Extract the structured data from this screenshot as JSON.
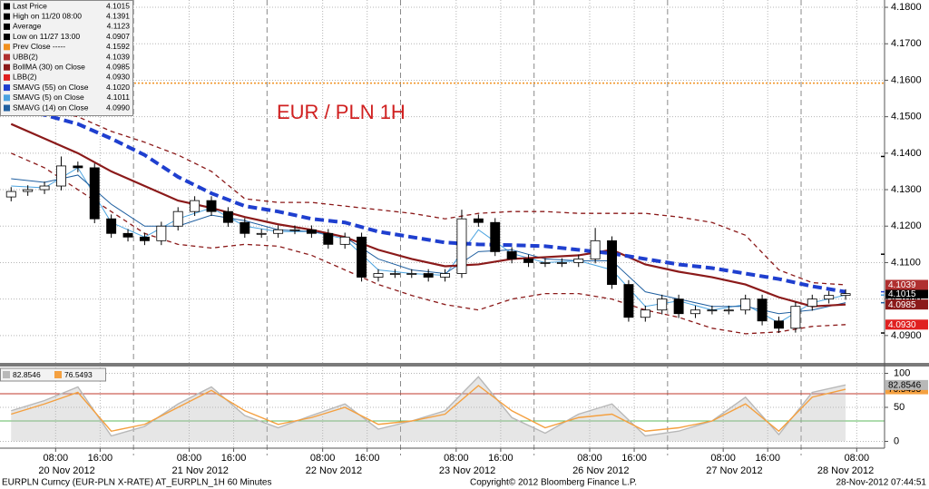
{
  "chart_data": {
    "type": "candlestick",
    "title": "EUR / PLN 1H",
    "up_color": "#ffffff",
    "down_color": "#000000",
    "x": [
      0,
      3,
      6,
      9,
      12,
      15,
      18,
      21,
      24,
      27,
      30,
      33,
      36,
      39,
      42,
      45,
      48,
      51,
      54,
      57,
      60,
      63,
      66,
      69,
      72,
      75,
      78,
      81,
      84,
      87,
      90,
      93,
      96,
      99,
      102,
      105,
      108,
      111,
      114,
      117,
      120,
      123,
      126,
      129,
      132,
      135,
      138,
      141,
      144,
      147,
      150
    ],
    "open": [
      4.128,
      4.1295,
      4.13,
      4.131,
      4.1365,
      4.136,
      4.122,
      4.118,
      4.117,
      4.116,
      4.12,
      4.124,
      4.127,
      4.124,
      4.121,
      4.118,
      4.118,
      4.119,
      4.119,
      4.118,
      4.115,
      4.117,
      4.106,
      4.107,
      4.107,
      4.107,
      4.106,
      4.107,
      4.122,
      4.121,
      4.113,
      4.111,
      4.11,
      4.11,
      4.11,
      4.111,
      4.116,
      4.104,
      4.095,
      4.097,
      4.1,
      4.096,
      4.097,
      4.097,
      4.097,
      4.1,
      4.094,
      4.092,
      4.098,
      4.1,
      4.101
    ],
    "high": [
      4.1307,
      4.1312,
      4.1322,
      4.1391,
      4.1377,
      4.1372,
      4.1232,
      4.1192,
      4.1182,
      4.1212,
      4.1252,
      4.1282,
      4.1282,
      4.1252,
      4.1222,
      4.1192,
      4.1202,
      4.1202,
      4.1202,
      4.1192,
      4.1182,
      4.1182,
      4.1082,
      4.1082,
      4.1082,
      4.1082,
      4.1082,
      4.1245,
      4.1232,
      4.1222,
      4.1142,
      4.1122,
      4.1112,
      4.1112,
      4.1122,
      4.1195,
      4.1172,
      4.1052,
      4.0982,
      4.1012,
      4.1012,
      4.0982,
      4.0982,
      4.0982,
      4.1012,
      4.1012,
      4.0952,
      4.0992,
      4.1012,
      4.1022,
      4.1027
    ],
    "low": [
      4.1268,
      4.1283,
      4.1288,
      4.1298,
      4.1348,
      4.1208,
      4.1168,
      4.1158,
      4.1148,
      4.1148,
      4.1188,
      4.1228,
      4.1228,
      4.1198,
      4.1168,
      4.1168,
      4.1168,
      4.1178,
      4.1168,
      4.1138,
      4.1138,
      4.1048,
      4.1048,
      4.1058,
      4.1058,
      4.1048,
      4.1048,
      4.1058,
      4.1198,
      4.1118,
      4.1098,
      4.1088,
      4.1088,
      4.1088,
      4.1088,
      4.1098,
      4.1028,
      4.0938,
      4.0938,
      4.0958,
      4.0948,
      4.0948,
      4.0958,
      4.0958,
      4.0958,
      4.0928,
      4.0907,
      4.0908,
      4.0968,
      4.0988,
      4.0998
    ],
    "close": [
      4.1295,
      4.13,
      4.131,
      4.1365,
      4.136,
      4.122,
      4.118,
      4.117,
      4.116,
      4.12,
      4.124,
      4.127,
      4.124,
      4.121,
      4.118,
      4.118,
      4.119,
      4.119,
      4.118,
      4.115,
      4.117,
      4.106,
      4.107,
      4.107,
      4.107,
      4.106,
      4.107,
      4.122,
      4.121,
      4.113,
      4.111,
      4.11,
      4.11,
      4.11,
      4.111,
      4.116,
      4.104,
      4.095,
      4.097,
      4.1,
      4.096,
      4.097,
      4.097,
      4.097,
      4.1,
      4.094,
      4.092,
      4.098,
      4.1,
      4.101,
      4.1015
    ],
    "overlays": {
      "x": [
        0,
        6,
        12,
        18,
        24,
        30,
        36,
        42,
        48,
        54,
        60,
        66,
        72,
        78,
        84,
        90,
        96,
        102,
        108,
        114,
        120,
        126,
        132,
        138,
        144,
        150
      ],
      "series": [
        {
          "color": "#8b1a1a",
          "dashed": true,
          "width": 1.3,
          "values": [
            4.156,
            4.152,
            4.15,
            4.146,
            4.143,
            4.1395,
            4.135,
            4.1275,
            4.1265,
            4.1265,
            4.1255,
            4.1245,
            4.1235,
            4.122,
            4.1235,
            4.124,
            4.124,
            4.1235,
            4.1235,
            4.1235,
            4.1225,
            4.121,
            4.1175,
            4.108,
            4.1045,
            4.1039
          ]
        },
        {
          "color": "#8b1a1a",
          "dashed": true,
          "width": 1.3,
          "values": [
            4.14,
            4.136,
            4.13,
            4.124,
            4.118,
            4.115,
            4.114,
            4.115,
            4.1145,
            4.112,
            4.108,
            4.104,
            4.101,
            4.0985,
            4.097,
            4.1,
            4.1015,
            4.1015,
            4.1,
            4.097,
            4.095,
            4.092,
            4.0905,
            4.091,
            4.0925,
            4.093
          ]
        },
        {
          "color": "#4aa3e0",
          "dashed": false,
          "width": 1,
          "values": [
            4.131,
            4.1305,
            4.136,
            4.121,
            4.117,
            4.122,
            4.125,
            4.12,
            4.1185,
            4.1185,
            4.1165,
            4.108,
            4.107,
            4.1065,
            4.119,
            4.1125,
            4.11,
            4.1105,
            4.108,
            4.098,
            4.0995,
            4.097,
            4.0985,
            4.0935,
            4.099,
            4.1011
          ]
        },
        {
          "color": "#1f5fa0",
          "dashed": false,
          "width": 1,
          "values": [
            4.133,
            4.132,
            4.134,
            4.126,
            4.12,
            4.12,
            4.123,
            4.1215,
            4.119,
            4.1185,
            4.117,
            4.111,
            4.108,
            4.107,
            4.113,
            4.1135,
            4.111,
            4.1105,
            4.1105,
            4.102,
            4.1,
            4.098,
            4.098,
            4.096,
            4.097,
            4.099
          ]
        },
        {
          "color": "#8b1a1a",
          "dashed": false,
          "width": 2.2,
          "values": [
            4.148,
            4.144,
            4.14,
            4.135,
            4.131,
            4.127,
            4.125,
            4.1225,
            4.1205,
            4.119,
            4.117,
            4.1135,
            4.111,
            4.109,
            4.1095,
            4.111,
            4.1115,
            4.112,
            4.1135,
            4.1095,
            4.1075,
            4.106,
            4.104,
            4.1005,
            4.098,
            4.0985
          ]
        },
        {
          "color": "#1f3fcf",
          "dashed": true,
          "width": 4,
          "values": [
            4.1525,
            4.1505,
            4.148,
            4.144,
            4.1395,
            4.1335,
            4.129,
            4.1255,
            4.124,
            4.122,
            4.121,
            4.1185,
            4.117,
            4.1155,
            4.115,
            4.1148,
            4.1145,
            4.1135,
            4.1125,
            4.111,
            4.1095,
            4.1085,
            4.107,
            4.1055,
            4.1035,
            4.102
          ]
        }
      ]
    },
    "legend": [
      {
        "name": "Last Price",
        "value": 4.1015,
        "label": "4.1015",
        "color": "#000000",
        "tag": true
      },
      {
        "name": "High on 11/20 08:00",
        "value": 4.1391,
        "label": "4.1391",
        "color": "#000000"
      },
      {
        "name": "Average",
        "value": 4.1123,
        "label": "4.1123",
        "color": "#000000"
      },
      {
        "name": "Low on 11/27 13:00",
        "value": 4.0907,
        "label": "4.0907",
        "color": "#000000"
      },
      {
        "name": "Prev Close -----",
        "value": 4.1592,
        "label": "4.1592",
        "color": "#f0901e",
        "line": true
      },
      {
        "name": "UBB(2)",
        "value": 4.1039,
        "label": "4.1039",
        "color": "#b03030",
        "tag": true
      },
      {
        "name": "BollMA (30) on Close",
        "value": 4.0985,
        "label": "4.0985",
        "color": "#8b1a1a",
        "tag": true
      },
      {
        "name": "LBB(2)",
        "value": 4.093,
        "label": "4.0930",
        "color": "#e02020",
        "tag": true
      },
      {
        "name": "SMAVG (55) on Close",
        "value": 4.102,
        "label": "4.1020",
        "color": "#1f3fcf"
      },
      {
        "name": "SMAVG (5) on Close",
        "value": 4.1011,
        "label": "4.1011",
        "color": "#4aa3e0"
      },
      {
        "name": "SMAVG (14) on Close",
        "value": 4.099,
        "label": "4.0990",
        "color": "#1f5fa0"
      }
    ],
    "xlim": [
      -2,
      157
    ],
    "xticks": [
      {
        "value": 8,
        "label": "08:00"
      },
      {
        "value": 16,
        "label": "16:00"
      },
      {
        "value": 32,
        "label": "08:00"
      },
      {
        "value": 40,
        "label": "16:00"
      },
      {
        "value": 56,
        "label": "08:00"
      },
      {
        "value": 64,
        "label": "16:00"
      },
      {
        "value": 80,
        "label": "08:00"
      },
      {
        "value": 88,
        "label": "16:00"
      },
      {
        "value": 104,
        "label": "08:00"
      },
      {
        "value": 112,
        "label": "16:00"
      },
      {
        "value": 128,
        "label": "08:00"
      },
      {
        "value": 136,
        "label": "16:00"
      },
      {
        "value": 152,
        "label": "08:00"
      }
    ],
    "day_labels": [
      {
        "value": 10,
        "label": "20 Nov 2012"
      },
      {
        "value": 34,
        "label": "21 Nov 2012"
      },
      {
        "value": 58,
        "label": "22 Nov 2012"
      },
      {
        "value": 82,
        "label": "23 Nov 2012"
      },
      {
        "value": 106,
        "label": "26 Nov 2012"
      },
      {
        "value": 130,
        "label": "27 Nov 2012"
      },
      {
        "value": 150,
        "label": "28 Nov 2012"
      }
    ],
    "session_breaks": [
      22,
      46,
      70,
      94,
      118,
      142
    ],
    "ylim": [
      4.0825,
      4.182
    ],
    "yticks": [
      {
        "value": 4.09,
        "label": "4.0900"
      },
      {
        "value": 4.1,
        "label": "4.1000"
      },
      {
        "value": 4.11,
        "label": "4.1100"
      },
      {
        "value": 4.12,
        "label": "4.1200"
      },
      {
        "value": 4.13,
        "label": "4.1300"
      },
      {
        "value": 4.14,
        "label": "4.1400"
      },
      {
        "value": 4.15,
        "label": "4.1500"
      },
      {
        "value": 4.16,
        "label": "4.1600"
      },
      {
        "value": 4.17,
        "label": "4.1700"
      },
      {
        "value": 4.18,
        "label": "4.1800"
      }
    ],
    "grid": true,
    "indicator": {
      "type": "line",
      "ylim": [
        -10,
        110
      ],
      "yticks": [
        0,
        50,
        100
      ],
      "bands": [
        {
          "value": 70,
          "color": "#c0392b"
        },
        {
          "value": 30,
          "color": "#5cb85c"
        }
      ],
      "x": [
        0,
        6,
        12,
        18,
        24,
        30,
        36,
        42,
        48,
        54,
        60,
        66,
        72,
        78,
        84,
        90,
        96,
        102,
        108,
        114,
        120,
        126,
        132,
        138,
        144,
        150
      ],
      "series": [
        {
          "color": "#b8b8b8",
          "area": true,
          "values": [
            45,
            60,
            80,
            8,
            22,
            55,
            80,
            38,
            20,
            38,
            55,
            18,
            30,
            45,
            95,
            35,
            12,
            40,
            55,
            8,
            15,
            30,
            65,
            10,
            72,
            82.8546
          ]
        },
        {
          "color": "#f4a040",
          "area": false,
          "values": [
            40,
            55,
            72,
            15,
            25,
            50,
            75,
            45,
            25,
            35,
            50,
            25,
            30,
            40,
            82,
            45,
            20,
            35,
            40,
            15,
            20,
            30,
            55,
            15,
            65,
            76.5493
          ]
        }
      ]
    }
  },
  "footer": {
    "left": "EURPLN Curncy (EUR-PLN X-RATE) AT_EURPLN_1H  60 Minutes",
    "center": "Copyright© 2012 Bloomberg Finance L.P.",
    "right": "28-Nov-2012 07:44:51"
  }
}
